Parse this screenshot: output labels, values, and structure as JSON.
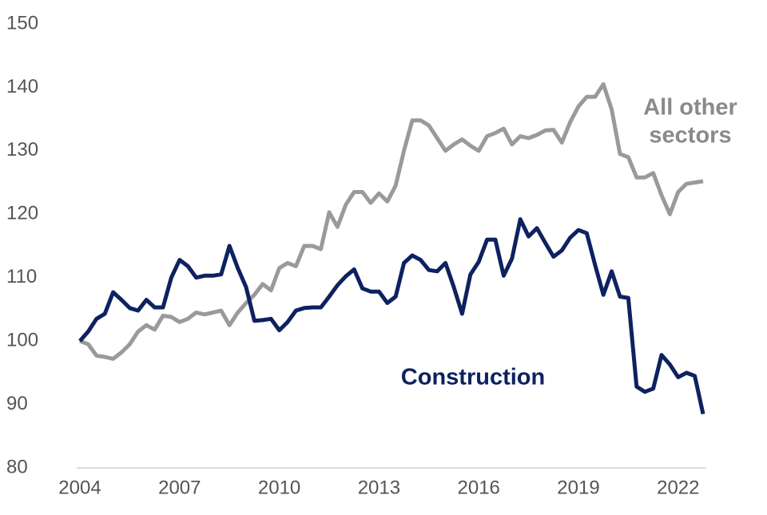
{
  "chart_data": {
    "type": "line",
    "x": [
      2004,
      2004.25,
      2004.5,
      2004.75,
      2005,
      2005.25,
      2005.5,
      2005.75,
      2006,
      2006.25,
      2006.5,
      2006.75,
      2007,
      2007.25,
      2007.5,
      2007.75,
      2008,
      2008.25,
      2008.5,
      2008.75,
      2009,
      2009.25,
      2009.5,
      2009.75,
      2010,
      2010.25,
      2010.5,
      2010.75,
      2011,
      2011.25,
      2011.5,
      2011.75,
      2012,
      2012.25,
      2012.5,
      2012.75,
      2013,
      2013.25,
      2013.5,
      2013.75,
      2014,
      2014.25,
      2014.5,
      2014.75,
      2015,
      2015.25,
      2015.5,
      2015.75,
      2016,
      2016.25,
      2016.5,
      2016.75,
      2017,
      2017.25,
      2017.5,
      2017.75,
      2018,
      2018.25,
      2018.5,
      2018.75,
      2019,
      2019.25,
      2019.5,
      2019.75,
      2020,
      2020.25,
      2020.5,
      2020.75,
      2021,
      2021.25,
      2021.5,
      2021.75,
      2022,
      2022.25,
      2022.5,
      2022.75
    ],
    "series": [
      {
        "name": "All other sectors",
        "color": "#9a9a9a",
        "values": [
          100,
          99.5,
          97.7,
          97.5,
          97.2,
          98.2,
          99.5,
          101.5,
          102.5,
          101.8,
          104,
          103.8,
          103,
          103.5,
          104.5,
          104.2,
          104.5,
          104.8,
          102.5,
          104.5,
          106,
          107.3,
          109,
          108,
          111.5,
          112.3,
          111.8,
          115,
          115,
          114.5,
          120.3,
          118,
          121.5,
          123.5,
          123.5,
          121.8,
          123.3,
          122,
          124.5,
          130,
          134.8,
          134.8,
          134,
          132,
          130,
          131,
          131.8,
          130.8,
          130,
          132.3,
          132.8,
          133.5,
          131,
          132.3,
          132,
          132.5,
          133.2,
          133.3,
          131.3,
          134.5,
          137,
          138.5,
          138.5,
          140.5,
          136.5,
          129.5,
          129,
          125.8,
          125.8,
          126.5,
          123,
          120,
          123.5,
          124.8,
          125,
          125.2
        ]
      },
      {
        "name": "Construction",
        "color": "#0e2160",
        "values": [
          100,
          101.5,
          103.5,
          104.3,
          107.7,
          106.5,
          105.2,
          104.8,
          106.5,
          105.3,
          105.3,
          110,
          112.8,
          111.8,
          110,
          110.3,
          110.3,
          110.5,
          115,
          111.5,
          108.5,
          103.2,
          103.3,
          103.5,
          101.7,
          103,
          104.8,
          105.2,
          105.3,
          105.3,
          107,
          108.8,
          110.2,
          111.3,
          108.3,
          107.8,
          107.8,
          106,
          107,
          112.3,
          113.5,
          112.8,
          111.2,
          111,
          112.3,
          108.5,
          104.3,
          110.5,
          112.5,
          116,
          116,
          110.3,
          113,
          119.2,
          116.5,
          117.8,
          115.5,
          113.3,
          114.3,
          116.3,
          117.5,
          117,
          112,
          107.3,
          111,
          107,
          106.8,
          92.8,
          92,
          92.5,
          97.8,
          96.3,
          94.3,
          95,
          94.5,
          88.5
        ]
      }
    ],
    "annotations": [
      {
        "lines": [
          "All other",
          "sectors"
        ],
        "color": "#8a8a8a"
      },
      {
        "lines": [
          "Construction"
        ],
        "color": "#0e2160"
      }
    ],
    "xlim": [
      2004,
      2022.75
    ],
    "xticks": [
      2004,
      2007,
      2010,
      2013,
      2016,
      2019,
      2022
    ],
    "ylim": [
      80,
      150
    ],
    "yticks": [
      80,
      90,
      100,
      110,
      120,
      130,
      140,
      150
    ]
  }
}
